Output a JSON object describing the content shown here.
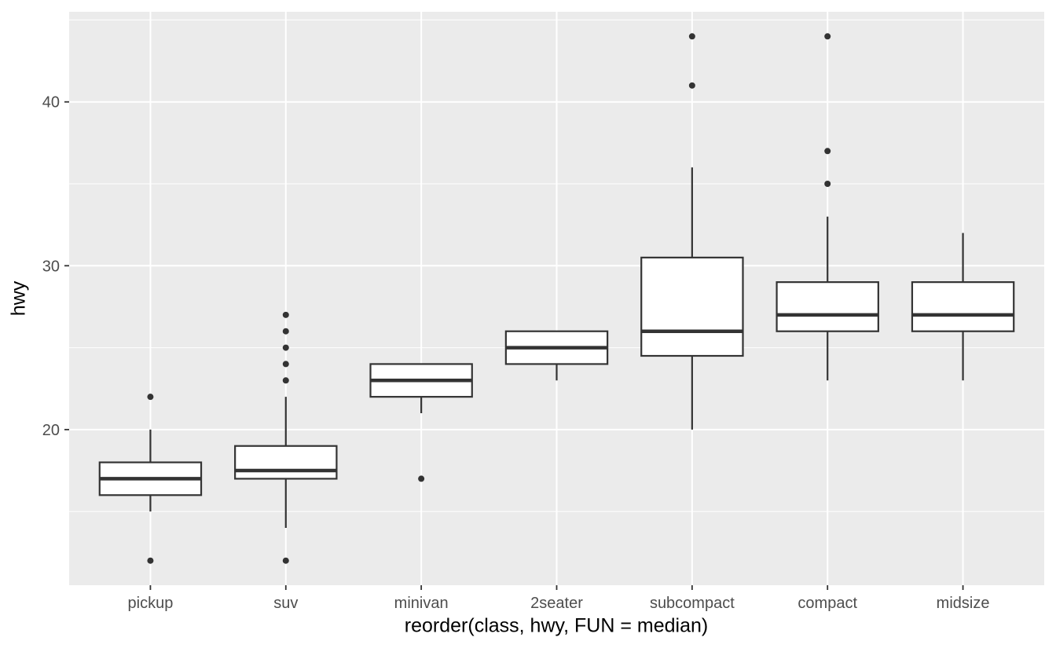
{
  "chart_data": {
    "type": "boxplot",
    "title": "",
    "xlabel": "reorder(class, hwy, FUN = median)",
    "ylabel": "hwy",
    "categories": [
      "pickup",
      "suv",
      "minivan",
      "2seater",
      "subcompact",
      "compact",
      "midsize"
    ],
    "series": [
      {
        "name": "pickup",
        "whisker_low": 15,
        "q1": 16,
        "median": 17,
        "q3": 18,
        "whisker_high": 20,
        "outliers": [
          12,
          22
        ]
      },
      {
        "name": "suv",
        "whisker_low": 14,
        "q1": 17,
        "median": 17.5,
        "q3": 19,
        "whisker_high": 22,
        "outliers": [
          12,
          23,
          24,
          25,
          26,
          27
        ]
      },
      {
        "name": "minivan",
        "whisker_low": 21,
        "q1": 22,
        "median": 23,
        "q3": 24,
        "whisker_high": 24,
        "outliers": [
          17
        ]
      },
      {
        "name": "2seater",
        "whisker_low": 23,
        "q1": 24,
        "median": 25,
        "q3": 26,
        "whisker_high": 26,
        "outliers": []
      },
      {
        "name": "subcompact",
        "whisker_low": 20,
        "q1": 24.5,
        "median": 26,
        "q3": 30.5,
        "whisker_high": 36,
        "outliers": [
          41,
          44
        ]
      },
      {
        "name": "compact",
        "whisker_low": 23,
        "q1": 26,
        "median": 27,
        "q3": 29,
        "whisker_high": 33,
        "outliers": [
          35,
          37,
          44
        ]
      },
      {
        "name": "midsize",
        "whisker_low": 23,
        "q1": 26,
        "median": 27,
        "q3": 29,
        "whisker_high": 32,
        "outliers": []
      }
    ],
    "y_axis": {
      "ticks": [
        20,
        30,
        40
      ],
      "minor_ticks": [
        15,
        25,
        35,
        45
      ],
      "range": [
        10.5,
        45.5
      ],
      "grid": true
    },
    "legend": "none",
    "colors": {
      "plot_background": "#FFFFFF",
      "panel_background": "#EBEBEB",
      "grid_line": "#FFFFFF",
      "box_stroke": "#333333",
      "box_fill": "#FFFFFF",
      "median_line": "#333333",
      "outlier_dot": "#333333",
      "tick_mark": "#333333",
      "axis_text": "#4D4D4D",
      "axis_title_text": "#000000"
    }
  }
}
